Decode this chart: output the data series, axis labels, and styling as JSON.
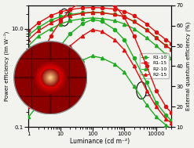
{
  "xlabel": "Luminance (cd m⁻²)",
  "ylabel_left": "Power efficiency (lm W⁻¹)",
  "ylabel_right": "External quantum efficiency (%)",
  "xlim_log": [
    0,
    4.5
  ],
  "ylim_left": [
    0.1,
    30
  ],
  "ylim_right": [
    10,
    70
  ],
  "colors_green": "#22aa22",
  "colors_red": "#dd1111",
  "bg": "#f2f2ee",
  "x": [
    1,
    2,
    5,
    10,
    20,
    50,
    100,
    200,
    500,
    1000,
    2000,
    5000,
    10000,
    20000,
    30000
  ],
  "PE_R1_15": [
    9.0,
    13.0,
    18.5,
    22.0,
    24.5,
    26.5,
    27.0,
    26.5,
    25.0,
    22.5,
    18.5,
    12.5,
    8.5,
    6.0,
    5.0
  ],
  "PE_R1_10": [
    7.5,
    10.5,
    15.0,
    17.5,
    19.5,
    21.0,
    21.5,
    21.0,
    19.5,
    17.5,
    14.0,
    9.5,
    6.5,
    4.5,
    3.8
  ],
  "PE_R2_15": [
    6.0,
    9.0,
    13.0,
    16.0,
    18.5,
    20.5,
    21.5,
    21.0,
    19.5,
    17.5,
    14.0,
    9.5,
    6.5,
    4.5,
    3.8
  ],
  "PE_R2_10": [
    4.5,
    7.0,
    10.0,
    12.5,
    14.5,
    16.0,
    16.5,
    16.0,
    14.5,
    12.5,
    10.0,
    6.5,
    4.5,
    3.0,
    2.5
  ],
  "EQE_R1_15": [
    0.32,
    0.42,
    0.55,
    0.62,
    0.68,
    0.72,
    0.74,
    0.73,
    0.7,
    0.64,
    0.55,
    0.4,
    0.28,
    0.2,
    0.17
  ],
  "EQE_R1_10": [
    0.25,
    0.33,
    0.44,
    0.5,
    0.56,
    0.61,
    0.63,
    0.62,
    0.58,
    0.53,
    0.44,
    0.32,
    0.22,
    0.16,
    0.13
  ],
  "EQE_R2_15": [
    0.2,
    0.28,
    0.38,
    0.44,
    0.5,
    0.55,
    0.58,
    0.57,
    0.53,
    0.48,
    0.4,
    0.28,
    0.2,
    0.14,
    0.12
  ],
  "EQE_R2_10": [
    0.15,
    0.21,
    0.29,
    0.34,
    0.39,
    0.43,
    0.45,
    0.44,
    0.41,
    0.37,
    0.3,
    0.21,
    0.15,
    0.11,
    0.09
  ]
}
